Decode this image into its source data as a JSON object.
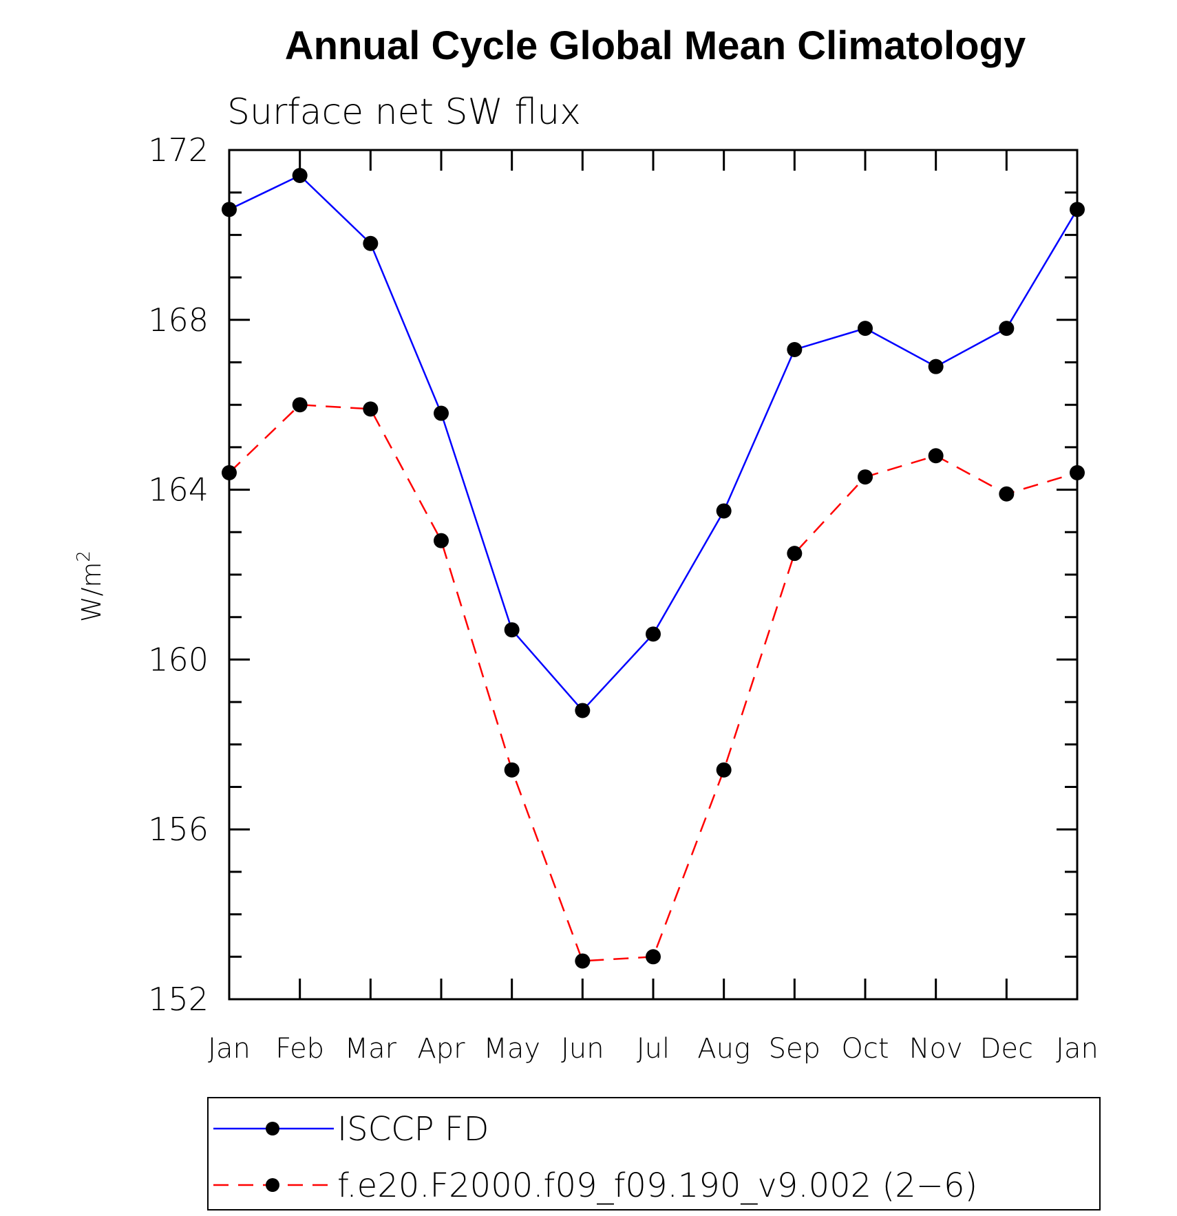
{
  "chart_data": {
    "type": "line",
    "title": "Annual Cycle Global Mean Climatology",
    "subtitle": "Surface net SW flux",
    "ylabel": "W/m",
    "ylabel_superscript": "2",
    "ylim": [
      152,
      172
    ],
    "yticks": [
      "172",
      "168",
      "164",
      "160",
      "156",
      "152"
    ],
    "categories": [
      "Jan",
      "Feb",
      "Mar",
      "Apr",
      "May",
      "Jun",
      "Jul",
      "Aug",
      "Sep",
      "Oct",
      "Nov",
      "Dec",
      "Jan"
    ],
    "series": [
      {
        "name": "ISCCP FD",
        "color": "#0000ff",
        "dashed": false,
        "values": [
          170.6,
          171.4,
          169.8,
          165.8,
          160.7,
          158.8,
          160.6,
          163.5,
          167.3,
          167.8,
          166.9,
          167.8,
          170.6
        ]
      },
      {
        "name": "f.e20.F2000.f09_f09.190_v9.002 (2−6)",
        "color": "#ff0000",
        "dashed": true,
        "values": [
          164.4,
          166.0,
          165.9,
          162.8,
          157.4,
          152.9,
          153.0,
          157.4,
          162.5,
          164.3,
          164.8,
          163.9,
          164.4
        ]
      }
    ],
    "grid": false,
    "legend_position": "bottom"
  }
}
